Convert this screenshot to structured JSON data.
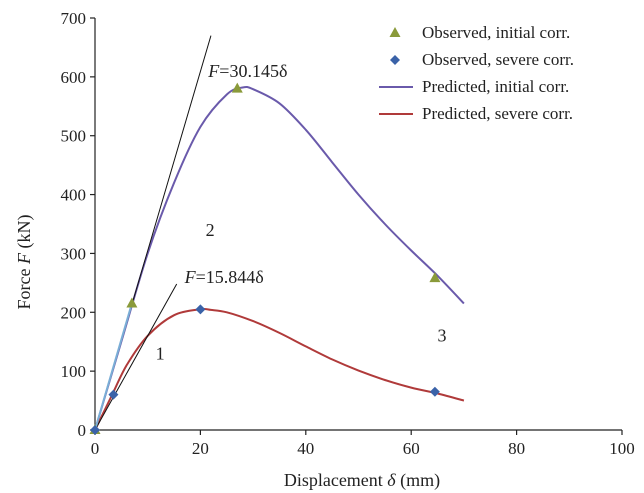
{
  "chart_data": {
    "type": "line",
    "xlabel": {
      "prefix": "Displacement ",
      "symbol": "δ",
      "suffix": " (mm)"
    },
    "ylabel": {
      "prefix": "Force ",
      "symbol": "F",
      "suffix": " (kN)"
    },
    "xlim": [
      0,
      100
    ],
    "ylim": [
      0,
      700
    ],
    "xticks": [
      "0",
      "20",
      "40",
      "60",
      "80",
      "100"
    ],
    "yticks": [
      "0",
      "100",
      "200",
      "300",
      "400",
      "500",
      "600",
      "700"
    ],
    "grid": false,
    "legend_position": "top-right",
    "series": [
      {
        "name": "Observed, initial corr.",
        "kind": "scatter",
        "marker": "triangle",
        "color": "#8a9a3a",
        "points": [
          [
            0,
            0
          ],
          [
            7,
            215
          ],
          [
            27,
            580
          ],
          [
            64.5,
            258
          ]
        ]
      },
      {
        "name": "Observed, severe corr.",
        "kind": "scatter",
        "marker": "diamond",
        "color": "#3a62a8",
        "points": [
          [
            0,
            0
          ],
          [
            3.5,
            60
          ],
          [
            20,
            205
          ],
          [
            64.5,
            65
          ]
        ]
      },
      {
        "name": "Predicted, initial corr.",
        "kind": "line",
        "color": "#6a5aab",
        "points": [
          [
            0,
            0
          ],
          [
            5,
            150
          ],
          [
            10,
            300
          ],
          [
            15,
            420
          ],
          [
            20,
            515
          ],
          [
            25,
            570
          ],
          [
            28,
            582
          ],
          [
            30,
            579
          ],
          [
            35,
            555
          ],
          [
            40,
            510
          ],
          [
            45,
            455
          ],
          [
            50,
            400
          ],
          [
            55,
            350
          ],
          [
            60,
            305
          ],
          [
            65,
            262
          ],
          [
            70,
            215
          ]
        ]
      },
      {
        "name": "Predicted, severe corr.",
        "kind": "line",
        "color": "#b03a3a",
        "points": [
          [
            0,
            0
          ],
          [
            3,
            55
          ],
          [
            6,
            110
          ],
          [
            10,
            160
          ],
          [
            15,
            195
          ],
          [
            20,
            205
          ],
          [
            22,
            204
          ],
          [
            25,
            200
          ],
          [
            30,
            185
          ],
          [
            35,
            165
          ],
          [
            40,
            142
          ],
          [
            45,
            120
          ],
          [
            50,
            101
          ],
          [
            55,
            85
          ],
          [
            60,
            72
          ],
          [
            65,
            62
          ],
          [
            70,
            50
          ]
        ]
      },
      {
        "name": "Stiffness line, initial",
        "kind": "reference",
        "color": "#111111",
        "points": [
          [
            0,
            0
          ],
          [
            22,
            670
          ]
        ]
      },
      {
        "name": "Stiffness line, severe",
        "kind": "reference",
        "color": "#111111",
        "points": [
          [
            0,
            0
          ],
          [
            15.5,
            248
          ]
        ]
      },
      {
        "name": "Observed link, initial",
        "kind": "link",
        "color": "#7aaed6",
        "points": [
          [
            0,
            0
          ],
          [
            7,
            215
          ]
        ]
      }
    ],
    "annotations": [
      {
        "id": "eq-initial",
        "prefix": "F",
        "text": "=30.145δ",
        "x": 21.5,
        "y": 600
      },
      {
        "id": "eq-severe",
        "prefix": "F",
        "text": "=15.844δ",
        "x": 17,
        "y": 250
      },
      {
        "id": "stage-1",
        "text": "1",
        "x": 11.5,
        "y": 120
      },
      {
        "id": "stage-2",
        "text": "2",
        "x": 21,
        "y": 330
      },
      {
        "id": "stage-3",
        "text": "3",
        "x": 65,
        "y": 150
      }
    ]
  }
}
